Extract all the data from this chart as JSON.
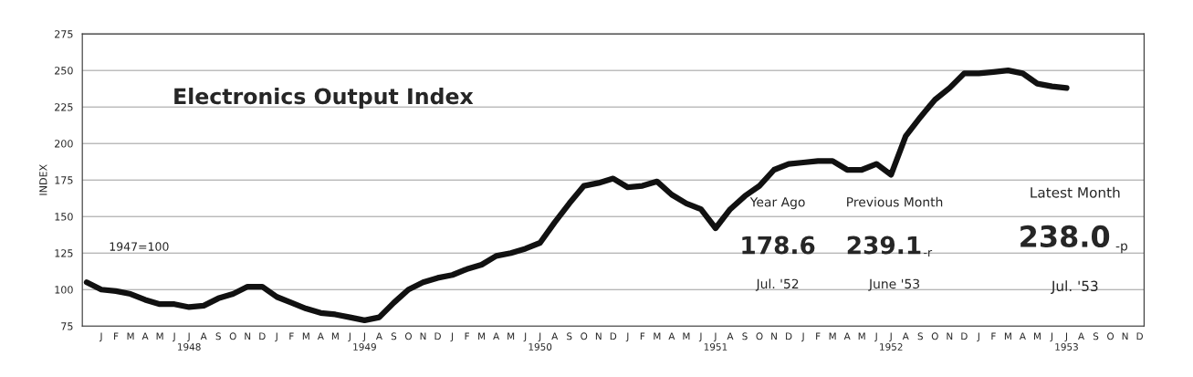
{
  "chart_data": {
    "type": "line",
    "title": "Electronics Output Index",
    "ylabel": "INDEX",
    "categories": [
      null,
      "J",
      "F",
      "M",
      "A",
      "M",
      "J",
      "J\n1948",
      "A",
      "S",
      "O",
      "N",
      "D",
      "J",
      "F",
      "M",
      "A",
      "M",
      "J",
      "J\n1949",
      "A",
      "S",
      "O",
      "N",
      "D",
      "J",
      "F",
      "M",
      "A",
      "M",
      "J",
      "J\n1950",
      "A",
      "S",
      "O",
      "N",
      "D",
      "J",
      "F",
      "M",
      "A",
      "M",
      "J",
      "J\n1951",
      "A",
      "S",
      "O",
      "N",
      "D",
      "J",
      "F",
      "M",
      "A",
      "M",
      "J",
      "J\n1952",
      "A",
      "S",
      "O",
      "N",
      "D",
      "J",
      "F",
      "M",
      "A",
      "M",
      "J",
      "J\n1953",
      "A",
      "S",
      "O",
      "N",
      "D"
    ],
    "series": [
      {
        "color": "#111111",
        "values": [
          105,
          100,
          99,
          97,
          93,
          90,
          90,
          88,
          89,
          94,
          97,
          102,
          102,
          95,
          91,
          87,
          84,
          83,
          81,
          79,
          81,
          91,
          100,
          105,
          108,
          110,
          114,
          117,
          123,
          125,
          128,
          132,
          146,
          159,
          171,
          173,
          176,
          170,
          171,
          174,
          165,
          159,
          155,
          142,
          155,
          164,
          171,
          182,
          186,
          187,
          188,
          188,
          182,
          182,
          186,
          178.6,
          205,
          218,
          230,
          238,
          248,
          248,
          249,
          250,
          248,
          241,
          239.1,
          238.0,
          null,
          null,
          null,
          null,
          null
        ]
      }
    ],
    "ylim": [
      75,
      275
    ],
    "yticks": [
      75,
      100,
      125,
      150,
      175,
      200,
      225,
      250,
      275
    ],
    "grid": "y",
    "annotations": [
      "1947=100",
      "Year Ago",
      "178.6",
      "Jul. '52",
      "Previous Month",
      "239.1",
      "-r",
      "June '53",
      "Latest Month",
      "238.0",
      "-p",
      "Jul. '53"
    ]
  }
}
